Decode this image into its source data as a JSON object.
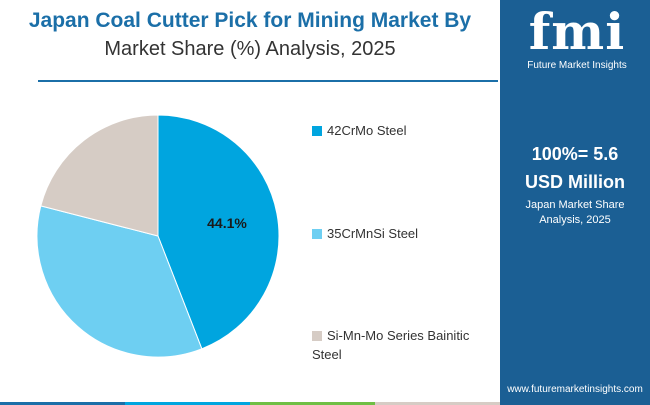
{
  "header": {
    "title_line1": "Japan Coal Cutter Pick for Mining Market By",
    "title_line2": "Market Share (%) Analysis, 2025"
  },
  "chart_data": {
    "type": "pie",
    "start_angle_deg": 0,
    "direction": "clockwise",
    "slices": [
      {
        "label": "42CrMo Steel",
        "value": 44.1,
        "color": "#00a5df",
        "data_label": "44.1%"
      },
      {
        "label": "35CrMnSi Steel",
        "value": 34.9,
        "color": "#6ecff2",
        "data_label": ""
      },
      {
        "label": "Si-Mn-Mo Series Bainitic Steel",
        "value": 21.0,
        "color": "#d6ccc5",
        "data_label": ""
      }
    ]
  },
  "legend": {
    "item0": "42CrMo Steel",
    "item1": "35CrMnSi Steel",
    "item2": "Si-Mn-Mo Series Bainitic Steel"
  },
  "sidebar": {
    "logo_mark": "fmi",
    "logo_sub": "Future Market Insights",
    "big_line1": "100%= 5.6",
    "big_line2": "USD Million",
    "small_line1": "Japan Market Share",
    "small_line2": "Analysis, 2025",
    "url": "www.futuremarketinsights.com"
  },
  "colors": {
    "brand_blue": "#1b5f94",
    "title_blue": "#1b6fa8",
    "bottom_bar": [
      "#1b6fa8",
      "#00a5df",
      "#6fbf44",
      "#d6ccc5"
    ]
  }
}
